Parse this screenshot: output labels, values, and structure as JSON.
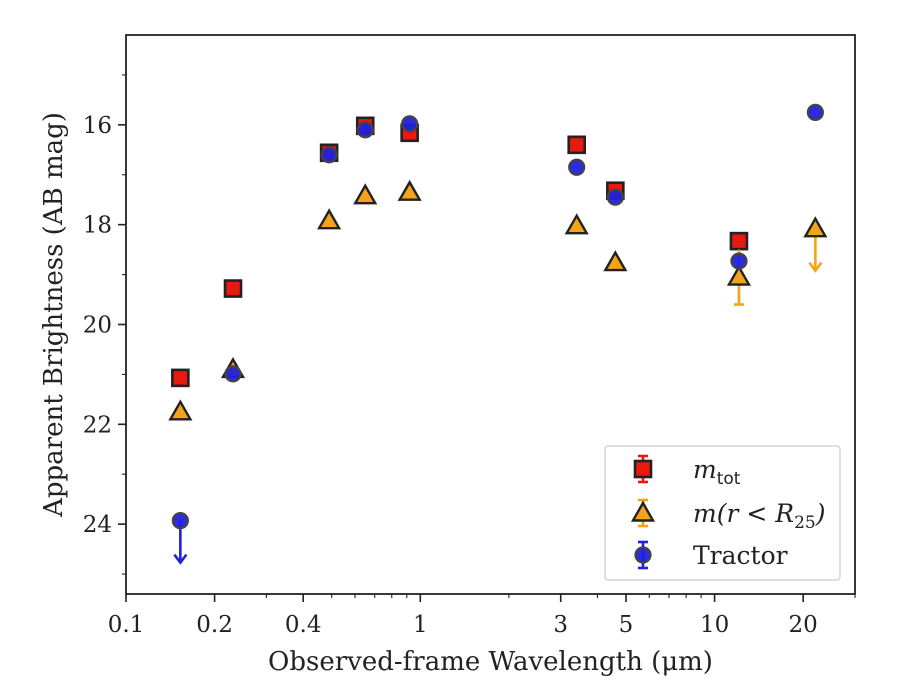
{
  "chart_data": {
    "type": "scatter",
    "xscale": "log",
    "xlim": [
      0.1,
      30
    ],
    "ylim": [
      25.4,
      14.2
    ],
    "y_inverted": true,
    "xlabel": "Observed-frame Wavelength (μm)",
    "ylabel": "Apparent Brightness (AB mag)",
    "x_ticks": [
      0.1,
      0.2,
      0.4,
      1,
      3,
      5,
      10,
      20
    ],
    "x_tick_labels": [
      "0.1",
      "0.2",
      "0.4",
      "1",
      "3",
      "5",
      "10",
      "20"
    ],
    "y_ticks": [
      16,
      18,
      20,
      22,
      24
    ],
    "y_tick_labels": [
      "16",
      "18",
      "20",
      "22",
      "24"
    ],
    "legend_position": "lower-right",
    "series": [
      {
        "name": "m_tot",
        "label_main": "m",
        "label_sub": "tot",
        "marker": "square",
        "face_color": "#e8190f",
        "edge_color": "#222222",
        "points": [
          {
            "x": 0.153,
            "y": 21.07
          },
          {
            "x": 0.231,
            "y": 19.28
          },
          {
            "x": 0.49,
            "y": 16.56
          },
          {
            "x": 0.65,
            "y": 16.02
          },
          {
            "x": 0.92,
            "y": 16.16
          },
          {
            "x": 3.4,
            "y": 16.4
          },
          {
            "x": 4.6,
            "y": 17.32
          },
          {
            "x": 12.1,
            "y": 18.33
          }
        ]
      },
      {
        "name": "m(r < R25)",
        "label_main": "m(r < R",
        "label_sub": "25",
        "label_end": ")",
        "marker": "triangle",
        "face_color": "#f5a318",
        "edge_color": "#222222",
        "points": [
          {
            "x": 0.153,
            "y": 21.75
          },
          {
            "x": 0.231,
            "y": 20.9
          },
          {
            "x": 0.49,
            "y": 17.92
          },
          {
            "x": 0.65,
            "y": 17.42
          },
          {
            "x": 0.92,
            "y": 17.35
          },
          {
            "x": 3.4,
            "y": 18.02
          },
          {
            "x": 4.6,
            "y": 18.76
          },
          {
            "x": 12.1,
            "y": 19.05,
            "err": 0.55
          },
          {
            "x": 22.0,
            "y": 18.08,
            "upper_limit": true
          }
        ]
      },
      {
        "name": "Tractor",
        "label_main": "Tractor",
        "marker": "circle",
        "face_color": "#2020dd",
        "edge_color": "#444444",
        "points": [
          {
            "x": 0.153,
            "y": 23.93,
            "upper_limit": true
          },
          {
            "x": 0.231,
            "y": 20.99
          },
          {
            "x": 0.49,
            "y": 16.6
          },
          {
            "x": 0.65,
            "y": 16.1
          },
          {
            "x": 0.92,
            "y": 15.98
          },
          {
            "x": 3.4,
            "y": 16.85
          },
          {
            "x": 4.6,
            "y": 17.45
          },
          {
            "x": 12.1,
            "y": 18.73
          },
          {
            "x": 22.0,
            "y": 15.75
          }
        ]
      }
    ]
  }
}
